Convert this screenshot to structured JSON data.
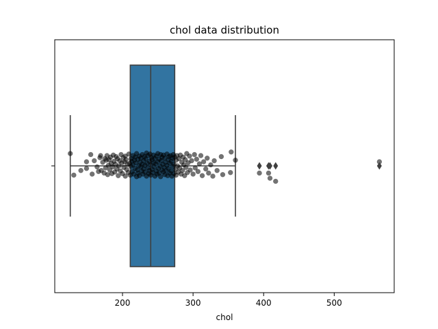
{
  "chart_data": {
    "type": "boxplot",
    "title": "chol data distribution",
    "xlabel": "chol",
    "ylabel": "",
    "xlim": [
      104,
      585
    ],
    "x_ticks": [
      200,
      300,
      400,
      500
    ],
    "box": {
      "color": "#3274a1",
      "whisker_low": 126,
      "q1": 211,
      "median": 240,
      "q3": 274,
      "whisker_high": 360
    },
    "outliers": [
      394,
      407,
      409,
      417,
      564
    ],
    "strip": {
      "color": "#000000",
      "points": [
        [
          126,
          0.24
        ],
        [
          131,
          -0.18
        ],
        [
          141,
          -0.09
        ],
        [
          149,
          -0.05
        ],
        [
          149,
          0.08
        ],
        [
          155,
          0.22
        ],
        [
          157,
          -0.16
        ],
        [
          160,
          0.1
        ],
        [
          164,
          -0.02
        ],
        [
          166,
          -0.11
        ],
        [
          168,
          0.16
        ],
        [
          169,
          0.2
        ],
        [
          170,
          -0.09
        ],
        [
          172,
          0.07
        ],
        [
          174,
          -0.14
        ],
        [
          175,
          0.14
        ],
        [
          176,
          -0.04
        ],
        [
          177,
          0.11
        ],
        [
          178,
          0.2
        ],
        [
          179,
          -0.17
        ],
        [
          180,
          0.01
        ],
        [
          181,
          0.12
        ],
        [
          182,
          -0.08
        ],
        [
          183,
          0.17
        ],
        [
          184,
          0.05
        ],
        [
          185,
          -0.15
        ],
        [
          186,
          -0.02
        ],
        [
          187,
          0.21
        ],
        [
          188,
          0.09
        ],
        [
          189,
          -0.12
        ],
        [
          190,
          0.03
        ],
        [
          191,
          0.18
        ],
        [
          192,
          -0.06
        ],
        [
          193,
          0.14
        ],
        [
          194,
          -0.19
        ],
        [
          195,
          0.0
        ],
        [
          196,
          0.1
        ],
        [
          197,
          -0.1
        ],
        [
          198,
          0.22
        ],
        [
          199,
          0.06
        ],
        [
          200,
          -0.15
        ],
        [
          201,
          0.16
        ],
        [
          202,
          -0.03
        ],
        [
          203,
          0.08
        ],
        [
          204,
          -0.2
        ],
        [
          204,
          0.19
        ],
        [
          205,
          0.12
        ],
        [
          206,
          -0.07
        ],
        [
          207,
          0.03
        ],
        [
          208,
          -0.13
        ],
        [
          209,
          0.23
        ],
        [
          210,
          0.05
        ],
        [
          211,
          -0.18
        ],
        [
          212,
          0.14
        ],
        [
          212,
          -0.01
        ],
        [
          213,
          0.09
        ],
        [
          214,
          -0.11
        ],
        [
          215,
          0.2
        ],
        [
          215,
          0.02
        ],
        [
          216,
          -0.16
        ],
        [
          217,
          0.11
        ],
        [
          218,
          -0.05
        ],
        [
          218,
          0.17
        ],
        [
          219,
          0.06
        ],
        [
          220,
          -0.21
        ],
        [
          220,
          0.24
        ],
        [
          221,
          -0.08
        ],
        [
          222,
          0.13
        ],
        [
          222,
          -0.14
        ],
        [
          223,
          0.0
        ],
        [
          224,
          0.19
        ],
        [
          224,
          -0.19
        ],
        [
          225,
          0.07
        ],
        [
          226,
          -0.02
        ],
        [
          226,
          0.15
        ],
        [
          227,
          -0.1
        ],
        [
          228,
          0.22
        ],
        [
          228,
          0.03
        ],
        [
          229,
          -0.16
        ],
        [
          230,
          0.1
        ],
        [
          230,
          -0.06
        ],
        [
          231,
          0.18
        ],
        [
          232,
          -0.12
        ],
        [
          232,
          0.01
        ],
        [
          233,
          0.14
        ],
        [
          234,
          -0.2
        ],
        [
          234,
          0.25
        ],
        [
          235,
          0.05
        ],
        [
          236,
          -0.04
        ],
        [
          236,
          0.2
        ],
        [
          237,
          -0.15
        ],
        [
          238,
          0.09
        ],
        [
          238,
          -0.09
        ],
        [
          239,
          0.23
        ],
        [
          240,
          0.02
        ],
        [
          240,
          -0.18
        ],
        [
          241,
          0.16
        ],
        [
          242,
          -0.07
        ],
        [
          242,
          0.12
        ],
        [
          243,
          -0.13
        ],
        [
          244,
          0.06
        ],
        [
          244,
          0.21
        ],
        [
          245,
          -0.02
        ],
        [
          246,
          -0.2
        ],
        [
          246,
          0.14
        ],
        [
          247,
          0.04
        ],
        [
          248,
          -0.1
        ],
        [
          248,
          0.19
        ],
        [
          249,
          -0.16
        ],
        [
          250,
          0.08
        ],
        [
          250,
          0.24
        ],
        [
          251,
          -0.05
        ],
        [
          252,
          0.13
        ],
        [
          252,
          -0.14
        ],
        [
          253,
          0.0
        ],
        [
          254,
          0.22
        ],
        [
          254,
          -0.21
        ],
        [
          255,
          0.1
        ],
        [
          256,
          -0.08
        ],
        [
          256,
          0.17
        ],
        [
          257,
          0.03
        ],
        [
          258,
          -0.12
        ],
        [
          258,
          0.21
        ],
        [
          259,
          -0.03
        ],
        [
          260,
          0.15
        ],
        [
          260,
          -0.17
        ],
        [
          261,
          0.07
        ],
        [
          262,
          -0.09
        ],
        [
          263,
          0.23
        ],
        [
          263,
          0.01
        ],
        [
          264,
          -0.19
        ],
        [
          265,
          0.12
        ],
        [
          265,
          -0.05
        ],
        [
          266,
          0.18
        ],
        [
          267,
          -0.14
        ],
        [
          267,
          0.05
        ],
        [
          268,
          0.2
        ],
        [
          269,
          -0.1
        ],
        [
          269,
          0.09
        ],
        [
          270,
          -0.2
        ],
        [
          271,
          0.15
        ],
        [
          271,
          -0.01
        ],
        [
          272,
          0.22
        ],
        [
          273,
          -0.15
        ],
        [
          273,
          0.03
        ],
        [
          274,
          0.17
        ],
        [
          275,
          -0.07
        ],
        [
          276,
          0.11
        ],
        [
          276,
          -0.18
        ],
        [
          277,
          0.2
        ],
        [
          278,
          0.0
        ],
        [
          279,
          -0.12
        ],
        [
          280,
          0.14
        ],
        [
          281,
          -0.04
        ],
        [
          282,
          0.21
        ],
        [
          283,
          -0.16
        ],
        [
          284,
          0.07
        ],
        [
          285,
          -0.09
        ],
        [
          286,
          0.17
        ],
        [
          287,
          0.02
        ],
        [
          288,
          -0.19
        ],
        [
          289,
          0.12
        ],
        [
          290,
          -0.03
        ],
        [
          291,
          0.24
        ],
        [
          292,
          -0.13
        ],
        [
          293,
          0.06
        ],
        [
          295,
          0.19
        ],
        [
          296,
          -0.08
        ],
        [
          298,
          0.1
        ],
        [
          300,
          -0.16
        ],
        [
          302,
          0.22
        ],
        [
          303,
          -0.04
        ],
        [
          305,
          0.13
        ],
        [
          307,
          -0.11
        ],
        [
          309,
          0.04
        ],
        [
          311,
          0.2
        ],
        [
          313,
          -0.19
        ],
        [
          315,
          0.08
        ],
        [
          318,
          -0.06
        ],
        [
          320,
          0.15
        ],
        [
          322,
          -0.14
        ],
        [
          325,
          0.02
        ],
        [
          328,
          -0.2
        ],
        [
          330,
          0.1
        ],
        [
          334,
          -0.09
        ],
        [
          340,
          0.18
        ],
        [
          342,
          -0.17
        ],
        [
          353,
          -0.13
        ],
        [
          354,
          0.27
        ],
        [
          360,
          0.11
        ],
        [
          394,
          -0.14
        ],
        [
          407,
          -0.14
        ],
        [
          409,
          -0.24
        ],
        [
          417,
          -0.3
        ],
        [
          564,
          0.08
        ]
      ]
    },
    "grid": false,
    "legend": "none"
  }
}
